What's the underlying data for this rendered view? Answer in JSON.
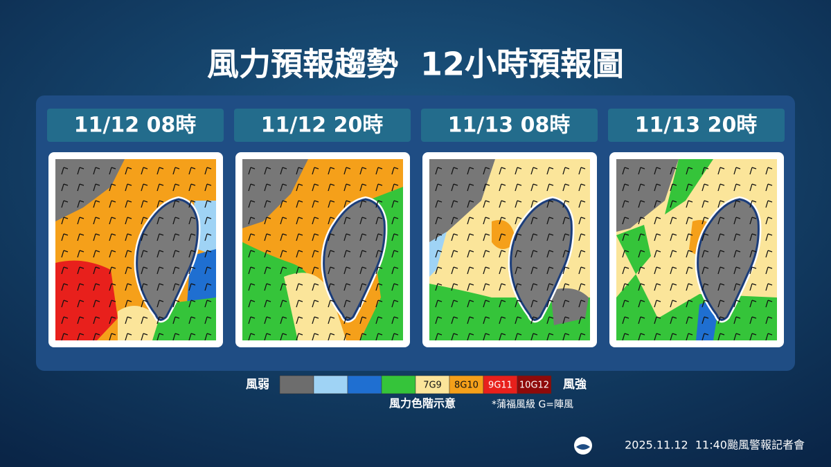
{
  "header": {
    "title": "風力預報趨勢  12小時預報圖"
  },
  "panels": [
    {
      "time": "11/12 08時"
    },
    {
      "time": "11/12 20時"
    },
    {
      "time": "11/13 08時"
    },
    {
      "time": "11/13 20時"
    }
  ],
  "legend": {
    "weak": "風弱",
    "strong": "風強",
    "swatches": [
      {
        "color": "#6d6d6d"
      },
      {
        "color": "#9fd3f5"
      },
      {
        "color": "#1f6fd1"
      },
      {
        "color": "#35c43a"
      },
      {
        "color": "#fbe59a",
        "label": "7G9"
      },
      {
        "color": "#f5a01a",
        "label": "8G10"
      },
      {
        "color": "#e8201c",
        "label": "9G11"
      },
      {
        "color": "#8e0a0a",
        "label": "10G12"
      }
    ],
    "caption": "風力色階示意",
    "note": "*蒲福風級 G=陣風"
  },
  "footer": {
    "text": "2025.11.12  11:40颱風警報記者會"
  }
}
